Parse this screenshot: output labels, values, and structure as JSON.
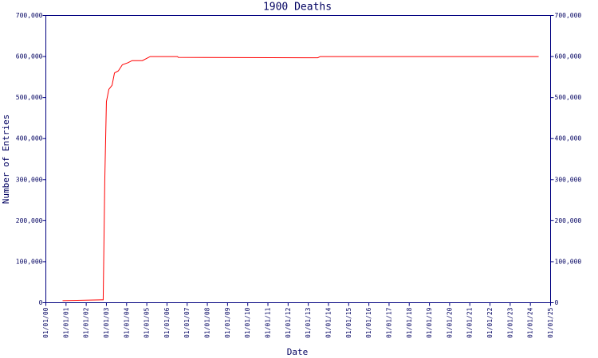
{
  "chart_data": {
    "type": "line",
    "title": "1900 Deaths",
    "x_label": "Date",
    "y_label": "Number of Entries",
    "x": [
      2000.83,
      2002.76,
      2002.84,
      2002.92,
      2003.0,
      2003.12,
      2003.28,
      2003.4,
      2003.59,
      2003.79,
      2004.07,
      2004.27,
      2004.78,
      2005.17,
      2006.52,
      2006.56,
      2013.47,
      2013.59,
      2024.41
    ],
    "series": [
      {
        "color": "#ff0000",
        "values": [
          5000,
          7000,
          7000,
          300000,
          490000,
          520000,
          530000,
          560000,
          565000,
          580000,
          585000,
          590000,
          590000,
          600000,
          600000,
          598000,
          597000,
          600000,
          600000
        ]
      }
    ],
    "xlim": [
      2000,
      2025
    ],
    "xticks": [
      {
        "value": 2000,
        "label": "01/01/00"
      },
      {
        "value": 2001,
        "label": "01/01/01"
      },
      {
        "value": 2002,
        "label": "01/01/02"
      },
      {
        "value": 2003,
        "label": "01/01/03"
      },
      {
        "value": 2004,
        "label": "01/01/04"
      },
      {
        "value": 2005,
        "label": "01/01/05"
      },
      {
        "value": 2006,
        "label": "01/01/06"
      },
      {
        "value": 2007,
        "label": "01/01/07"
      },
      {
        "value": 2008,
        "label": "01/01/08"
      },
      {
        "value": 2009,
        "label": "01/01/09"
      },
      {
        "value": 2010,
        "label": "01/01/10"
      },
      {
        "value": 2011,
        "label": "01/01/11"
      },
      {
        "value": 2012,
        "label": "01/01/12"
      },
      {
        "value": 2013,
        "label": "01/01/13"
      },
      {
        "value": 2014,
        "label": "01/01/14"
      },
      {
        "value": 2015,
        "label": "01/01/15"
      },
      {
        "value": 2016,
        "label": "01/01/16"
      },
      {
        "value": 2017,
        "label": "01/01/17"
      },
      {
        "value": 2018,
        "label": "01/01/18"
      },
      {
        "value": 2019,
        "label": "01/01/19"
      },
      {
        "value": 2020,
        "label": "01/01/20"
      },
      {
        "value": 2021,
        "label": "01/01/21"
      },
      {
        "value": 2022,
        "label": "01/01/22"
      },
      {
        "value": 2023,
        "label": "01/01/23"
      },
      {
        "value": 2024,
        "label": "01/01/24"
      },
      {
        "value": 2025,
        "label": "01/01/25"
      }
    ],
    "ylim": [
      0,
      700000
    ],
    "yticks": [
      0,
      {
        "value": 100000,
        "label": "100,000"
      },
      {
        "value": 200000,
        "label": "200,000"
      },
      {
        "value": 300000,
        "label": "300,000"
      },
      {
        "value": 400000,
        "label": "400,000"
      },
      {
        "value": 500000,
        "label": "500,000"
      },
      {
        "value": 600000,
        "label": "600,000"
      },
      {
        "value": 700000,
        "label": "700,000"
      }
    ],
    "y2lim": [
      0,
      700000
    ],
    "y2ticks": [
      0,
      {
        "value": 100000,
        "label": "100,000"
      },
      {
        "value": 200000,
        "label": "200,000"
      },
      {
        "value": 300000,
        "label": "300,000"
      },
      {
        "value": 400000,
        "label": "400,000"
      },
      {
        "value": 500000,
        "label": "500,000"
      },
      {
        "value": 600000,
        "label": "600,000"
      },
      {
        "value": 700000,
        "label": "700,000"
      }
    ],
    "grid": false
  }
}
